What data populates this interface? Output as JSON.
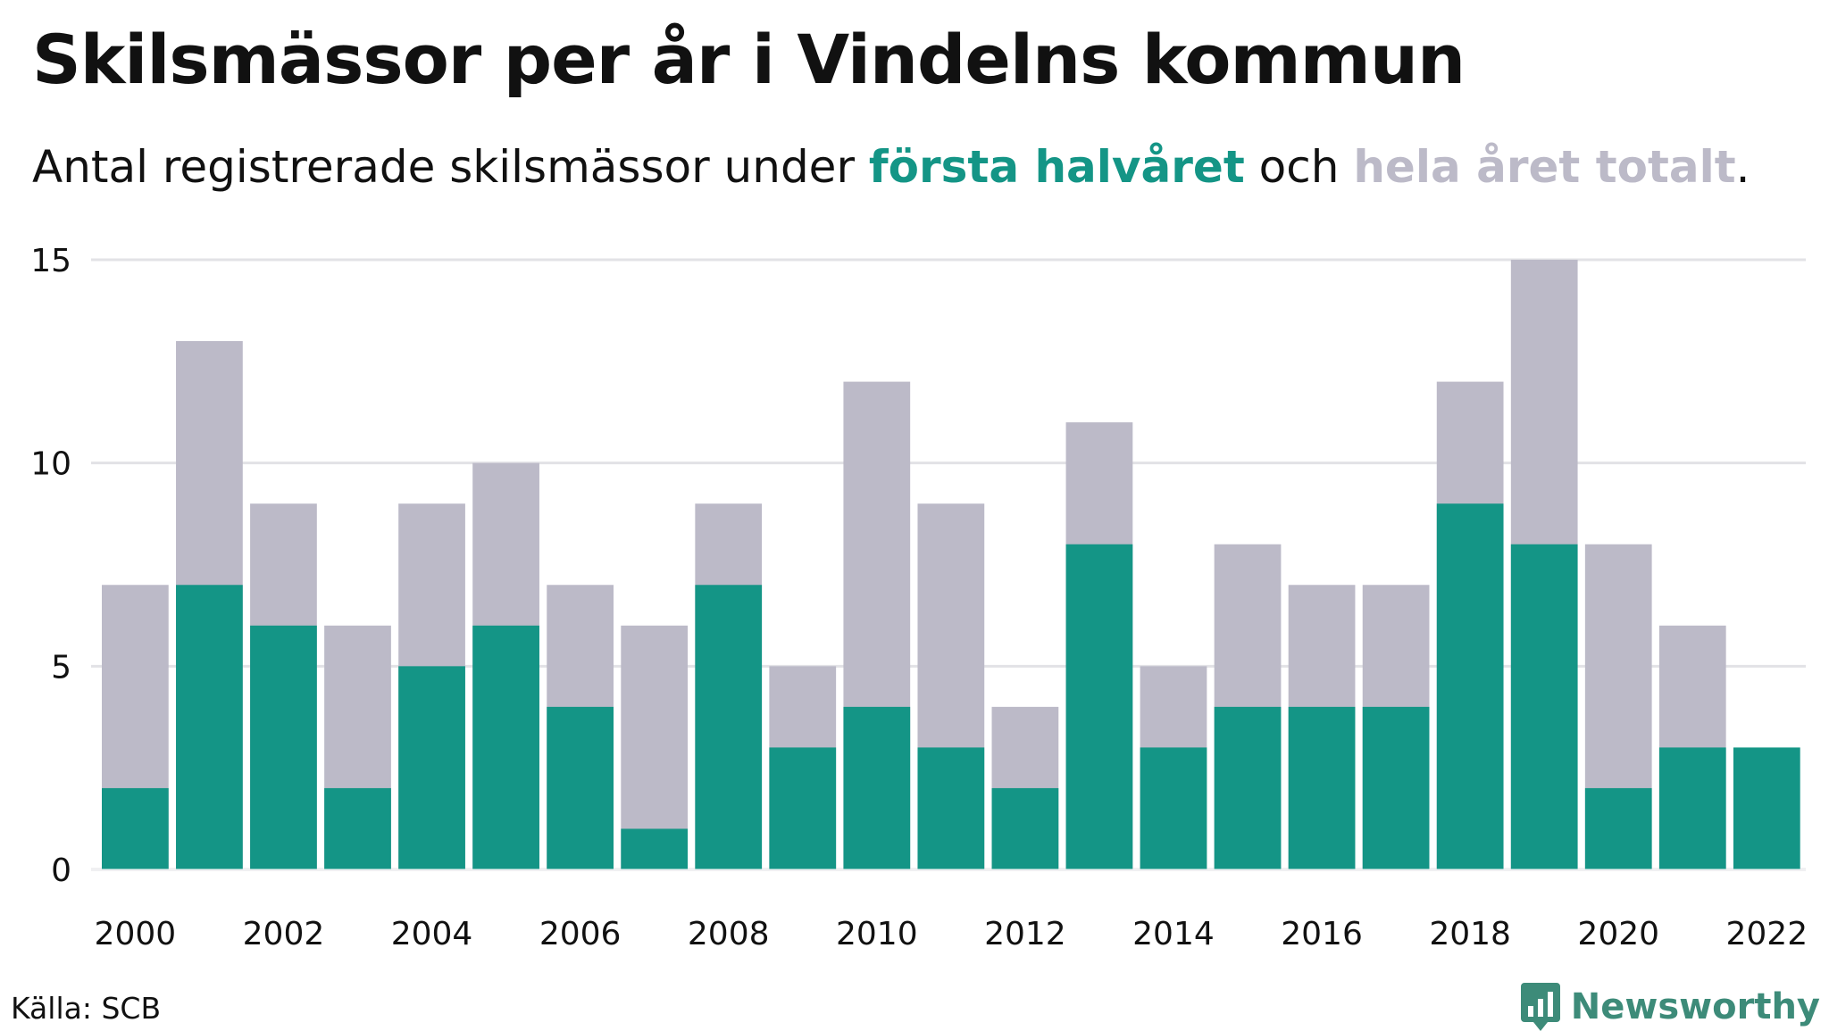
{
  "title": "Skilsmässor per år i Vindelns kommun",
  "subtitle": {
    "prefix": "Antal registrerade skilsmässor under ",
    "first_half": "första halvåret",
    "middle": " och ",
    "full_year": "hela året totalt",
    "suffix": "."
  },
  "source": "Källa: SCB",
  "brand": {
    "name": "Newsworthy",
    "icon": "newsworthy-logo-icon",
    "color": "#3d8b79"
  },
  "colors": {
    "first_half": "#149586",
    "full_year": "#bcbac8",
    "grid": "#e2e2e6"
  },
  "chart_data": {
    "type": "bar",
    "stacking": "overlay",
    "x": [
      2000,
      2001,
      2002,
      2003,
      2004,
      2005,
      2006,
      2007,
      2008,
      2009,
      2010,
      2011,
      2012,
      2013,
      2014,
      2015,
      2016,
      2017,
      2018,
      2019,
      2020,
      2021,
      2022
    ],
    "series": [
      {
        "key": "full_year",
        "values": [
          7,
          13,
          9,
          6,
          9,
          10,
          7,
          6,
          9,
          5,
          12,
          9,
          4,
          11,
          5,
          8,
          7,
          7,
          12,
          15,
          8,
          6,
          null
        ]
      },
      {
        "key": "first_half",
        "values": [
          2,
          7,
          6,
          2,
          5,
          6,
          4,
          1,
          7,
          3,
          4,
          3,
          2,
          8,
          3,
          4,
          4,
          4,
          9,
          8,
          2,
          3,
          3
        ]
      }
    ],
    "x_tick_labels": [
      "2000",
      "2002",
      "2004",
      "2006",
      "2008",
      "2010",
      "2012",
      "2014",
      "2016",
      "2018",
      "2020",
      "2022"
    ],
    "y_ticks": [
      0,
      5,
      10,
      15
    ],
    "ylim": [
      0,
      15
    ],
    "grid": true,
    "xlabel": "",
    "ylabel": ""
  }
}
